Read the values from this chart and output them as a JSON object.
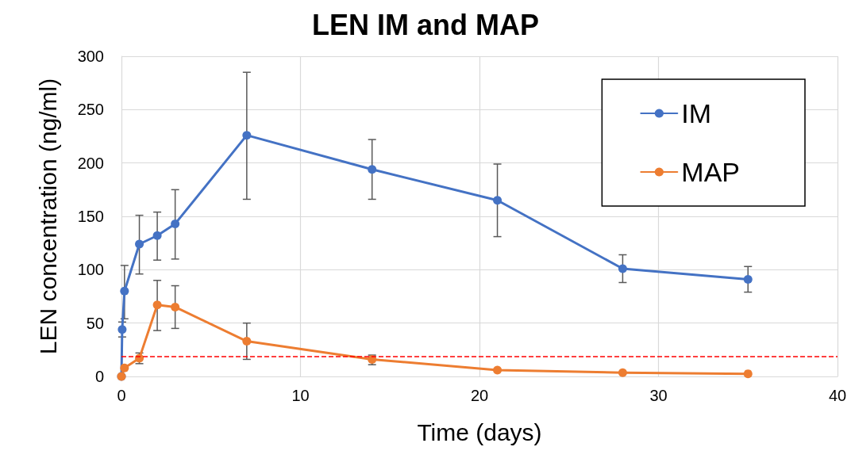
{
  "chart_data": {
    "type": "line",
    "title": "LEN IM and MAP",
    "xlabel": "Time (days)",
    "ylabel": "LEN concentration (ng/ml)",
    "xlim": [
      0,
      40
    ],
    "xticks": [
      0,
      10,
      20,
      30,
      40
    ],
    "ylim": [
      0,
      300
    ],
    "yticks": [
      0,
      50,
      100,
      150,
      200,
      250,
      300
    ],
    "grid": true,
    "legend": "top right",
    "marker": "circle",
    "line_style": "solid",
    "series": [
      {
        "name": "IM",
        "color": "#4472c4",
        "x": [
          0,
          0.04,
          0.17,
          1,
          2,
          3,
          7,
          14,
          21,
          28,
          35
        ],
        "values": [
          0,
          44,
          80,
          124,
          132,
          143,
          226,
          194,
          165,
          101,
          91
        ],
        "errors": [
          null,
          [
            37,
            51
          ],
          [
            54,
            104
          ],
          [
            96,
            151
          ],
          [
            109,
            154
          ],
          [
            110,
            175
          ],
          [
            166,
            285
          ],
          [
            166,
            222
          ],
          [
            131,
            199
          ],
          [
            88,
            114
          ],
          [
            79,
            103
          ]
        ]
      },
      {
        "name": "MAP",
        "color": "#ed7d31",
        "x": [
          0,
          0.17,
          1,
          2,
          3,
          7,
          14,
          21,
          28,
          35
        ],
        "values": [
          0,
          8,
          17,
          67,
          65,
          33,
          16,
          6,
          3.5,
          2.5
        ],
        "errors": [
          null,
          null,
          [
            12,
            22
          ],
          [
            43,
            90
          ],
          [
            45,
            85
          ],
          [
            16,
            50
          ],
          [
            11,
            20
          ],
          null,
          null,
          null
        ]
      }
    ],
    "ref_lines": [
      {
        "axis": "y",
        "value": 19,
        "color": "#ff0000",
        "line_style": "dashed"
      }
    ]
  }
}
